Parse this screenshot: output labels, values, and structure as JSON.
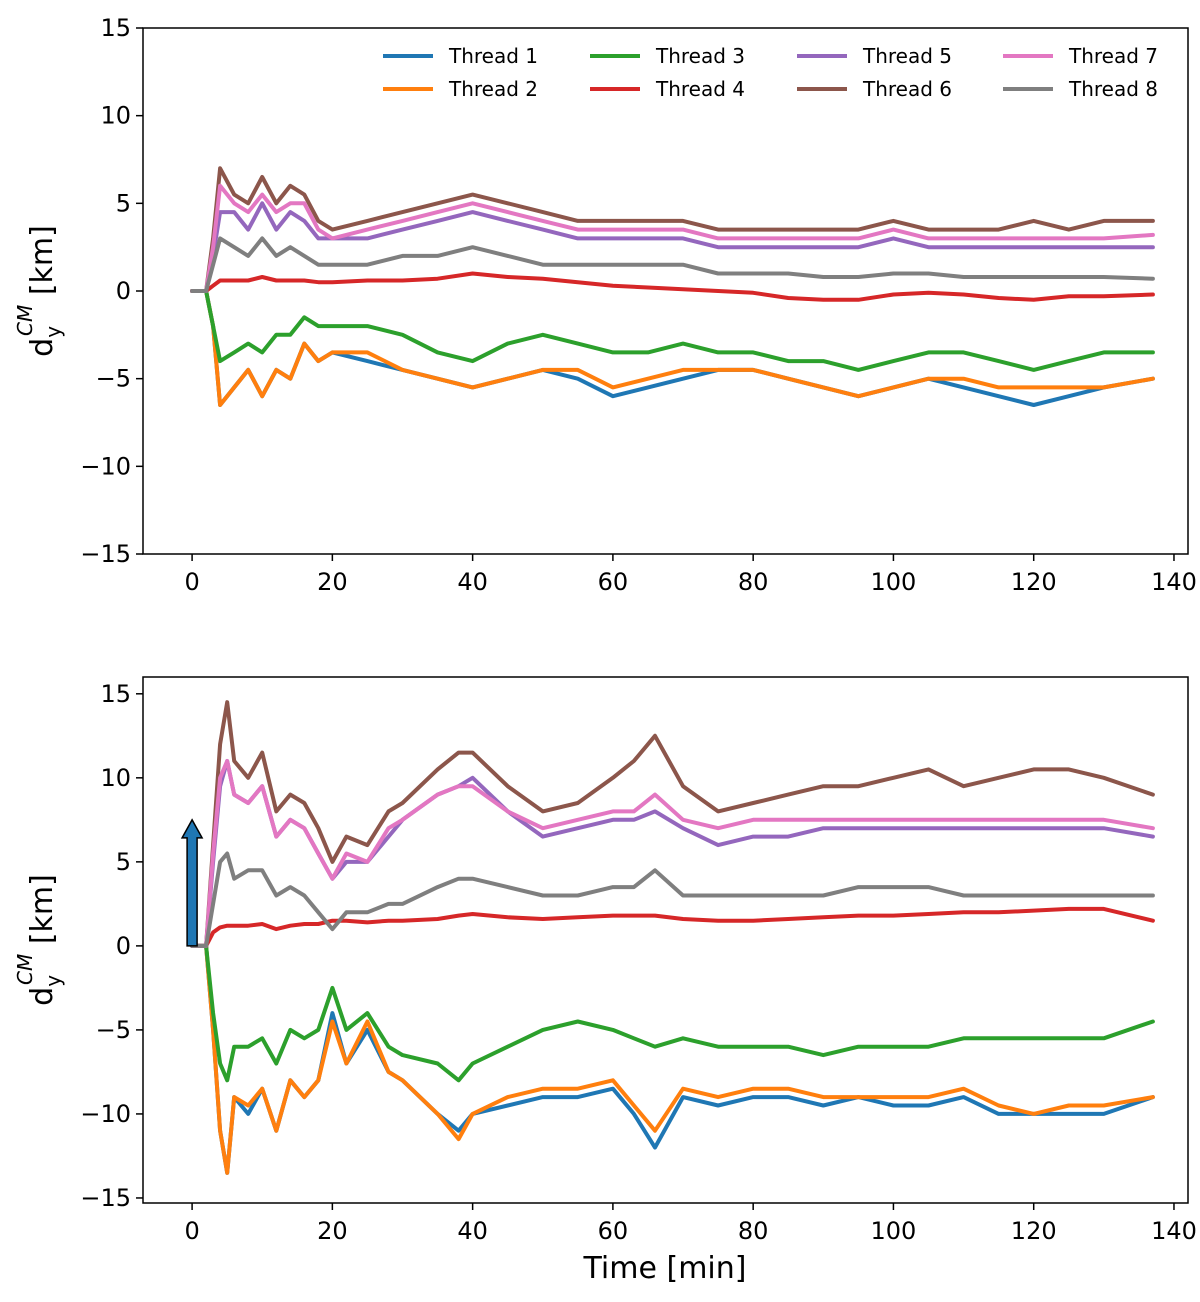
{
  "figure": {
    "xlabel": "Time [min]",
    "arrow_color": "#1f77b4"
  },
  "chart_data": [
    {
      "type": "line",
      "panel": "top",
      "title": "",
      "xlabel": "",
      "ylabel": "d_y^CM [km]",
      "ylabel_base": "d",
      "ylabel_sub": "y",
      "ylabel_sup": "CM",
      "ylabel_unit": " [km]",
      "xlim": [
        -7,
        142
      ],
      "ylim": [
        -15,
        15
      ],
      "xticks": [
        0,
        20,
        40,
        60,
        80,
        100,
        120,
        140
      ],
      "xtick_labels": [
        "0",
        "20",
        "40",
        "60",
        "80",
        "100",
        "120",
        "140"
      ],
      "yticks": [
        -15,
        -10,
        -5,
        0,
        5,
        10,
        15
      ],
      "ytick_labels": [
        "−15",
        "−10",
        "−5",
        "0",
        "5",
        "10",
        "15"
      ],
      "legend": {
        "location": "upper-right",
        "ncols": 4
      },
      "x": [
        0,
        2,
        3,
        4,
        6,
        8,
        10,
        12,
        14,
        16,
        18,
        20,
        25,
        30,
        35,
        40,
        45,
        50,
        55,
        60,
        65,
        70,
        75,
        80,
        85,
        90,
        95,
        100,
        105,
        110,
        115,
        120,
        125,
        130,
        137
      ],
      "series": [
        {
          "name": "Thread 1",
          "color": "#1f77b4",
          "values": [
            0,
            0,
            -2,
            -6.5,
            -5.5,
            -4.5,
            -6,
            -4.5,
            -5,
            -3,
            -4,
            -3.5,
            -4,
            -4.5,
            -5,
            -5.5,
            -5,
            -4.5,
            -5,
            -6,
            -5.5,
            -5,
            -4.5,
            -4.5,
            -5,
            -5.5,
            -6,
            -5.5,
            -5,
            -5.5,
            -6,
            -6.5,
            -6,
            -5.5,
            -5
          ]
        },
        {
          "name": "Thread 2",
          "color": "#ff7f0e",
          "values": [
            0,
            0,
            -2,
            -6.5,
            -5.5,
            -4.5,
            -6,
            -4.5,
            -5,
            -3,
            -4,
            -3.5,
            -3.5,
            -4.5,
            -5,
            -5.5,
            -5,
            -4.5,
            -4.5,
            -5.5,
            -5,
            -4.5,
            -4.5,
            -4.5,
            -5,
            -5.5,
            -6,
            -5.5,
            -5,
            -5,
            -5.5,
            -5.5,
            -5.5,
            -5.5,
            -5
          ]
        },
        {
          "name": "Thread 3",
          "color": "#2ca02c",
          "values": [
            0,
            0,
            -2,
            -4,
            -3.5,
            -3,
            -3.5,
            -2.5,
            -2.5,
            -1.5,
            -2,
            -2,
            -2,
            -2.5,
            -3.5,
            -4,
            -3,
            -2.5,
            -3,
            -3.5,
            -3.5,
            -3,
            -3.5,
            -3.5,
            -4,
            -4,
            -4.5,
            -4,
            -3.5,
            -3.5,
            -4,
            -4.5,
            -4,
            -3.5,
            -3.5
          ]
        },
        {
          "name": "Thread 4",
          "color": "#d62728",
          "values": [
            0,
            0,
            0.3,
            0.6,
            0.6,
            0.6,
            0.8,
            0.6,
            0.6,
            0.6,
            0.5,
            0.5,
            0.6,
            0.6,
            0.7,
            1,
            0.8,
            0.7,
            0.5,
            0.3,
            0.2,
            0.1,
            0,
            -0.1,
            -0.4,
            -0.5,
            -0.5,
            -0.2,
            -0.1,
            -0.2,
            -0.4,
            -0.5,
            -0.3,
            -0.3,
            -0.2
          ]
        },
        {
          "name": "Thread 5",
          "color": "#9467bd",
          "values": [
            0,
            0,
            2,
            4.5,
            4.5,
            3.5,
            5,
            3.5,
            4.5,
            4,
            3,
            3,
            3,
            3.5,
            4,
            4.5,
            4,
            3.5,
            3,
            3,
            3,
            3,
            2.5,
            2.5,
            2.5,
            2.5,
            2.5,
            3,
            2.5,
            2.5,
            2.5,
            2.5,
            2.5,
            2.5,
            2.5
          ]
        },
        {
          "name": "Thread 6",
          "color": "#8c564b",
          "values": [
            0,
            0,
            3,
            7,
            5.5,
            5,
            6.5,
            5,
            6,
            5.5,
            4,
            3.5,
            4,
            4.5,
            5,
            5.5,
            5,
            4.5,
            4,
            4,
            4,
            4,
            3.5,
            3.5,
            3.5,
            3.5,
            3.5,
            4,
            3.5,
            3.5,
            3.5,
            4,
            3.5,
            4,
            4
          ]
        },
        {
          "name": "Thread 7",
          "color": "#e377c2",
          "values": [
            0,
            0,
            2.5,
            6,
            5,
            4.5,
            5.5,
            4.5,
            5,
            5,
            3.5,
            3,
            3.5,
            4,
            4.5,
            5,
            4.5,
            4,
            3.5,
            3.5,
            3.5,
            3.5,
            3,
            3,
            3,
            3,
            3,
            3.5,
            3,
            3,
            3,
            3,
            3,
            3,
            3.2
          ]
        },
        {
          "name": "Thread 8",
          "color": "#7f7f7f",
          "values": [
            0,
            0,
            1.5,
            3,
            2.5,
            2,
            3,
            2,
            2.5,
            2,
            1.5,
            1.5,
            1.5,
            2,
            2,
            2.5,
            2,
            1.5,
            1.5,
            1.5,
            1.5,
            1.5,
            1,
            1,
            1,
            0.8,
            0.8,
            1,
            1,
            0.8,
            0.8,
            0.8,
            0.8,
            0.8,
            0.7
          ]
        }
      ]
    },
    {
      "type": "line",
      "panel": "bottom",
      "title": "",
      "xlabel": "Time [min]",
      "ylabel": "d_y^CM [km]",
      "ylabel_base": "d",
      "ylabel_sub": "y",
      "ylabel_sup": "CM",
      "ylabel_unit": " [km]",
      "xlim": [
        -7,
        142
      ],
      "ylim": [
        -15.3,
        16
      ],
      "xticks": [
        0,
        20,
        40,
        60,
        80,
        100,
        120,
        140
      ],
      "xtick_labels": [
        "0",
        "20",
        "40",
        "60",
        "80",
        "100",
        "120",
        "140"
      ],
      "yticks": [
        -15,
        -10,
        -5,
        0,
        5,
        10,
        15
      ],
      "ytick_labels": [
        "−15",
        "−10",
        "−5",
        "0",
        "5",
        "10",
        "15"
      ],
      "annotation": {
        "type": "arrow",
        "x": 0,
        "y_from": 0,
        "y_to": 7.5
      },
      "x": [
        0,
        2,
        3,
        4,
        5,
        6,
        8,
        10,
        12,
        14,
        16,
        18,
        20,
        22,
        25,
        28,
        30,
        35,
        38,
        40,
        45,
        50,
        55,
        60,
        63,
        66,
        70,
        75,
        80,
        85,
        90,
        95,
        100,
        105,
        110,
        115,
        120,
        125,
        130,
        137
      ],
      "series": [
        {
          "name": "Thread 1",
          "color": "#1f77b4",
          "values": [
            0,
            0,
            -5,
            -11,
            -13.5,
            -9,
            -10,
            -8.5,
            -11,
            -8,
            -9,
            -8,
            -4,
            -7,
            -5,
            -7.5,
            -8,
            -10,
            -11,
            -10,
            -9.5,
            -9,
            -9,
            -8.5,
            -10,
            -12,
            -9,
            -9.5,
            -9,
            -9,
            -9.5,
            -9,
            -9.5,
            -9.5,
            -9,
            -10,
            -10,
            -10,
            -10,
            -9
          ]
        },
        {
          "name": "Thread 2",
          "color": "#ff7f0e",
          "values": [
            0,
            0,
            -5,
            -11,
            -13.5,
            -9,
            -9.5,
            -8.5,
            -11,
            -8,
            -9,
            -8,
            -4.5,
            -7,
            -4.5,
            -7.5,
            -8,
            -10,
            -11.5,
            -10,
            -9,
            -8.5,
            -8.5,
            -8,
            -9.5,
            -11,
            -8.5,
            -9,
            -8.5,
            -8.5,
            -9,
            -9,
            -9,
            -9,
            -8.5,
            -9.5,
            -10,
            -9.5,
            -9.5,
            -9
          ]
        },
        {
          "name": "Thread 3",
          "color": "#2ca02c",
          "values": [
            0,
            0,
            -4,
            -7,
            -8,
            -6,
            -6,
            -5.5,
            -7,
            -5,
            -5.5,
            -5,
            -2.5,
            -5,
            -4,
            -6,
            -6.5,
            -7,
            -8,
            -7,
            -6,
            -5,
            -4.5,
            -5,
            -5.5,
            -6,
            -5.5,
            -6,
            -6,
            -6,
            -6.5,
            -6,
            -6,
            -6,
            -5.5,
            -5.5,
            -5.5,
            -5.5,
            -5.5,
            -4.5
          ]
        },
        {
          "name": "Thread 4",
          "color": "#d62728",
          "values": [
            0,
            0,
            0.8,
            1.1,
            1.2,
            1.2,
            1.2,
            1.3,
            1,
            1.2,
            1.3,
            1.3,
            1.5,
            1.5,
            1.4,
            1.5,
            1.5,
            1.6,
            1.8,
            1.9,
            1.7,
            1.6,
            1.7,
            1.8,
            1.8,
            1.8,
            1.6,
            1.5,
            1.5,
            1.6,
            1.7,
            1.8,
            1.8,
            1.9,
            2,
            2,
            2.1,
            2.2,
            2.2,
            1.5
          ]
        },
        {
          "name": "Thread 5",
          "color": "#9467bd",
          "values": [
            0,
            0,
            5,
            9.5,
            11,
            9,
            8.5,
            9.5,
            6.5,
            7.5,
            7,
            5.5,
            4,
            5,
            5,
            6.5,
            7.5,
            9,
            9.5,
            10,
            8,
            6.5,
            7,
            7.5,
            7.5,
            8,
            7,
            6,
            6.5,
            6.5,
            7,
            7,
            7,
            7,
            7,
            7,
            7,
            7,
            7,
            6.5
          ]
        },
        {
          "name": "Thread 6",
          "color": "#8c564b",
          "values": [
            0,
            0,
            6,
            12,
            14.5,
            11,
            10,
            11.5,
            8,
            9,
            8.5,
            7,
            5,
            6.5,
            6,
            8,
            8.5,
            10.5,
            11.5,
            11.5,
            9.5,
            8,
            8.5,
            10,
            11,
            12.5,
            9.5,
            8,
            8.5,
            9,
            9.5,
            9.5,
            10,
            10.5,
            9.5,
            10,
            10.5,
            10.5,
            10,
            9
          ]
        },
        {
          "name": "Thread 7",
          "color": "#e377c2",
          "values": [
            0,
            0,
            5.5,
            10,
            11,
            9,
            8.5,
            9.5,
            6.5,
            7.5,
            7,
            5.5,
            4,
            5.5,
            5,
            7,
            7.5,
            9,
            9.5,
            9.5,
            8,
            7,
            7.5,
            8,
            8,
            9,
            7.5,
            7,
            7.5,
            7.5,
            7.5,
            7.5,
            7.5,
            7.5,
            7.5,
            7.5,
            7.5,
            7.5,
            7.5,
            7
          ]
        },
        {
          "name": "Thread 8",
          "color": "#7f7f7f",
          "values": [
            0,
            0,
            2.5,
            5,
            5.5,
            4,
            4.5,
            4.5,
            3,
            3.5,
            3,
            2,
            1,
            2,
            2,
            2.5,
            2.5,
            3.5,
            4,
            4,
            3.5,
            3,
            3,
            3.5,
            3.5,
            4.5,
            3,
            3,
            3,
            3,
            3,
            3.5,
            3.5,
            3.5,
            3,
            3,
            3,
            3,
            3,
            3
          ]
        }
      ]
    }
  ]
}
